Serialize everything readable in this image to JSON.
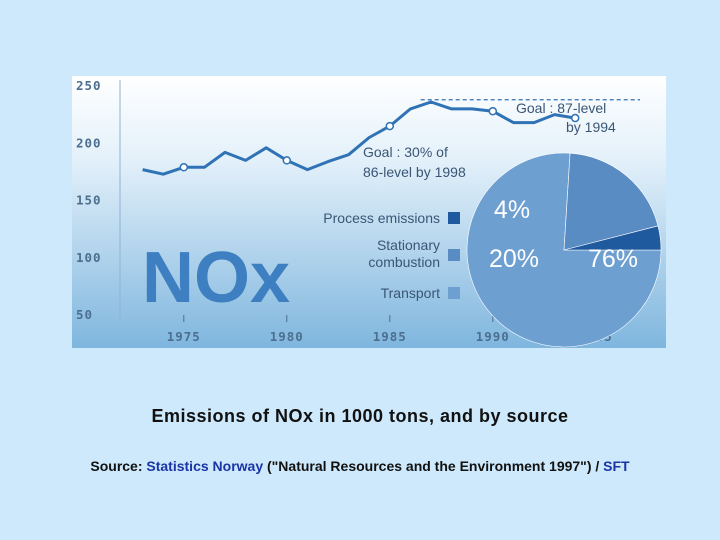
{
  "caption": "Emissions of NOx in 1000 tons, and by source",
  "source": {
    "prefix": "Source:",
    "link1": "Statistics Norway",
    "middle": "(\"Natural Resources and the Environment 1997\") /",
    "link2": "SFT"
  },
  "colors": {
    "page_bg": "#cde9fb",
    "chart_bg_top": "#ffffff",
    "chart_bg_bottom": "#7fb6de",
    "line": "#2f72b5",
    "pie_transport": "#6e9fd1",
    "pie_stationary": "#5a8cc4",
    "pie_process": "#1f5a9e"
  },
  "chart_data": [
    {
      "type": "line",
      "big_label": "NOx",
      "x": [
        1973,
        1974,
        1975,
        1976,
        1977,
        1978,
        1979,
        1980,
        1981,
        1982,
        1983,
        1984,
        1985,
        1986,
        1987,
        1988,
        1989,
        1990,
        1991,
        1992,
        1993,
        1994
      ],
      "series": [
        {
          "values": [
            177,
            173,
            179,
            179,
            192,
            185,
            196,
            185,
            177,
            184,
            190,
            205,
            215,
            230,
            236,
            230,
            230,
            228,
            218,
            218,
            225,
            222
          ]
        }
      ],
      "markers_x": [
        1975,
        1980,
        1985,
        1990,
        1994
      ],
      "goal_line": {
        "value": 238,
        "style": "dashed"
      },
      "annotations": [
        {
          "lines": [
            "Goal : 87-level",
            "by 1994"
          ]
        },
        {
          "lines": [
            "Goal : 30% of",
            "86-level by 1998"
          ]
        }
      ],
      "xticks": [
        "1975",
        "1980",
        "1985",
        "1990",
        "1995"
      ],
      "xtick_values": [
        1975,
        1980,
        1985,
        1990,
        1995
      ],
      "yticks": [
        "250",
        "200",
        "150",
        "100",
        "50"
      ],
      "ytick_values": [
        250,
        200,
        150,
        100,
        50
      ],
      "xlim": [
        1972,
        1997
      ],
      "ylim": [
        50,
        250
      ],
      "grid": false
    },
    {
      "type": "pie",
      "labels": [
        "Transport",
        "Stationary combustion",
        "Process emissions"
      ],
      "legend_lines": [
        [
          "Process emissions"
        ],
        [
          "Stationary",
          "combustion"
        ],
        [
          "Transport"
        ]
      ],
      "values": [
        76,
        20,
        4
      ],
      "value_labels": [
        "76%",
        "20%",
        "4%"
      ]
    }
  ]
}
